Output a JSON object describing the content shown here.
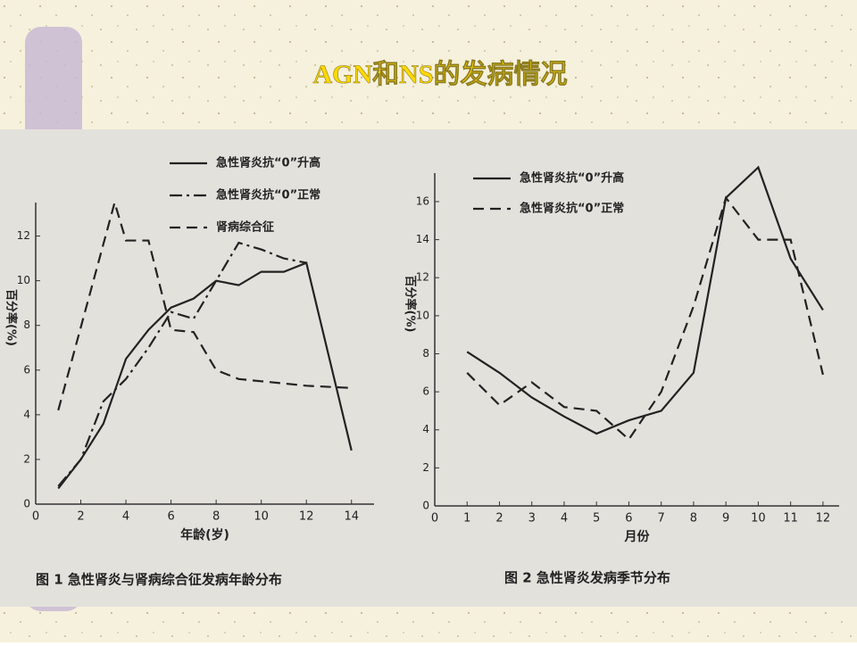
{
  "title": "AGN和NS的发病情况",
  "chart_data": [
    {
      "type": "line",
      "title": "图 1 急性肾炎与肾病综合征发病年龄分布",
      "x_label": "年龄(岁)",
      "y_label": "百分率(%)",
      "xlim": [
        0,
        15
      ],
      "xticks": [
        0,
        2,
        4,
        6,
        8,
        10,
        12,
        14
      ],
      "ylim": [
        0,
        13.5
      ],
      "yticks": [
        0,
        2,
        4,
        6,
        8,
        10,
        12
      ],
      "series": [
        {
          "name": "急性肾炎抗“0”升高",
          "color": "#222222",
          "line_style": "solid",
          "x": [
            1,
            2,
            3,
            4,
            5,
            6,
            7,
            8,
            9,
            10,
            11,
            12,
            14
          ],
          "values": [
            0.7,
            2,
            3.6,
            6.5,
            7.8,
            8.8,
            9.2,
            10,
            9.8,
            10.4,
            10.4,
            10.8,
            2.4
          ]
        },
        {
          "name": "急性肾炎抗“0”正常",
          "color": "#222222",
          "line_style": "dashdot",
          "x": [
            1,
            2,
            3,
            4,
            5,
            6,
            7,
            8,
            9,
            10,
            11,
            12
          ],
          "values": [
            0.8,
            2,
            4.6,
            5.6,
            7,
            8.6,
            8.3,
            10,
            11.7,
            11.4,
            11,
            10.8
          ]
        },
        {
          "name": "肾病综合征",
          "color": "#222222",
          "line_style": "dashed",
          "x": [
            1,
            3.5,
            4,
            5,
            6,
            7,
            8,
            9,
            10,
            12,
            14
          ],
          "values": [
            4.2,
            13.5,
            11.8,
            11.8,
            7.8,
            7.7,
            6,
            5.6,
            5.5,
            5.3,
            5.2
          ]
        }
      ]
    },
    {
      "type": "line",
      "title": "图 2 急性肾炎发病季节分布",
      "x_label": "月份",
      "y_label": "百分率(%)",
      "xlim": [
        0,
        12.5
      ],
      "xticks": [
        0,
        1,
        2,
        3,
        4,
        5,
        6,
        7,
        8,
        9,
        10,
        11,
        12
      ],
      "ylim": [
        0,
        17.5
      ],
      "yticks": [
        0,
        2,
        4,
        6,
        8,
        10,
        12,
        14,
        16
      ],
      "series": [
        {
          "name": "急性肾炎抗“0”升高",
          "color": "#222222",
          "line_style": "solid",
          "x": [
            1,
            2,
            3,
            4,
            5,
            6,
            7,
            8,
            9,
            10,
            11,
            12
          ],
          "values": [
            8.1,
            7,
            5.7,
            4.7,
            3.8,
            4.5,
            5,
            7,
            16.2,
            17.8,
            13,
            10.3
          ]
        },
        {
          "name": "急性肾炎抗“0”正常",
          "color": "#222222",
          "line_style": "dashed",
          "x": [
            1,
            2,
            3,
            4,
            5,
            6,
            7,
            8,
            9,
            10,
            11,
            12
          ],
          "values": [
            7,
            5.3,
            6.5,
            5.2,
            5,
            3.5,
            6,
            10.5,
            16.2,
            14,
            14,
            6.9
          ]
        }
      ]
    }
  ]
}
